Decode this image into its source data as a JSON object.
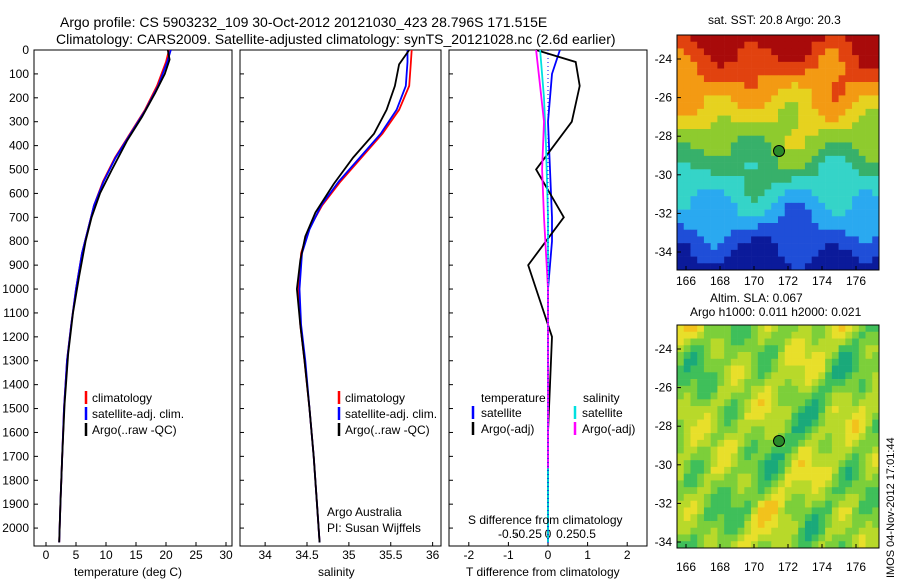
{
  "header": {
    "line1": "Argo profile: CS 5903232_109 30-Oct-2012 20121030_423 28.796S 171.515E",
    "line2": "Climatology: CARS2009. Satellite-adjusted climatology: synTS_20121028.nc (2.6d earlier)"
  },
  "colors": {
    "climatology": "#ff0000",
    "satellite": "#0000ff",
    "argo": "#000000",
    "sat_cyan": "#00e0e0",
    "argo_magenta": "#ff00ff"
  },
  "depth_ticks": [
    "0",
    "100",
    "200",
    "300",
    "400",
    "500",
    "600",
    "700",
    "800",
    "900",
    "1000",
    "1100",
    "1200",
    "1300",
    "1400",
    "1500",
    "1600",
    "1700",
    "1800",
    "1900",
    "2000"
  ],
  "panel_temp": {
    "xlabel": "temperature (deg C)",
    "xticks": [
      "0",
      "5",
      "10",
      "15",
      "20",
      "25",
      "30"
    ],
    "legend": [
      "climatology",
      "satellite-adj. clim.",
      "Argo(..raw -QC)"
    ]
  },
  "panel_sal": {
    "xlabel": "salinity",
    "xticks": [
      "34",
      "34.5",
      "35",
      "35.5",
      "36"
    ],
    "legend": [
      "climatology",
      "satellite-adj. clim.",
      "Argo(..raw -QC)"
    ],
    "credit1": "Argo Australia",
    "credit2": "PI: Susan Wijffels"
  },
  "panel_diff": {
    "xlabel_bottom": "T difference from climatology",
    "xlabel_top": "S difference from climatology",
    "xticks_T": [
      "-2",
      "-1",
      "0",
      "1",
      "2"
    ],
    "xticks_S": [
      "-0.5",
      "-0.25",
      "0",
      "0.25",
      "0.5"
    ],
    "legend_t_head": "temperature",
    "legend_s_head": "salinity",
    "legend_t": [
      "satellite",
      "Argo(-adj)"
    ],
    "legend_s": [
      "satellite",
      "Argo(-adj)"
    ]
  },
  "map_sst": {
    "title": "sat. SST: 20.8  Argo: 20.3",
    "yticks": [
      "-24",
      "-26",
      "-28",
      "-30",
      "-32",
      "-34"
    ],
    "xticks": [
      "166",
      "168",
      "170",
      "172",
      "174",
      "176"
    ]
  },
  "map_sla": {
    "title1": "Altim. SLA: 0.067",
    "title2": "Argo h1000: 0.011 h2000: 0.021",
    "yticks": [
      "-24",
      "-26",
      "-28",
      "-30",
      "-32",
      "-34"
    ],
    "xticks": [
      "166",
      "168",
      "170",
      "172",
      "174",
      "176"
    ]
  },
  "footer_vertical": "IMOS 04-Nov-2012 17:01:44",
  "chart_data": [
    {
      "type": "line",
      "xlabel": "temperature (deg C)",
      "ylabel": "",
      "xlim": [
        -2,
        31
      ],
      "ylim": [
        2075,
        0
      ],
      "series": [
        {
          "name": "climatology",
          "x": [
            20.5,
            20.0,
            18.5,
            16.5,
            14.0,
            11.5,
            9.5,
            8.0,
            7.0,
            6.0,
            5.0,
            4.2,
            3.5,
            3.0,
            2.7,
            2.4,
            2.2
          ],
          "y": [
            0,
            50,
            150,
            250,
            350,
            450,
            550,
            650,
            750,
            850,
            1000,
            1150,
            1300,
            1500,
            1700,
            1900,
            2060
          ]
        },
        {
          "name": "satellite-adj. clim.",
          "x": [
            20.8,
            20.2,
            18.7,
            16.6,
            14.1,
            11.6,
            9.6,
            8.0,
            7.0,
            6.0,
            5.0,
            4.2,
            3.5,
            3.0,
            2.7,
            2.4,
            2.2
          ],
          "y": [
            0,
            50,
            150,
            250,
            350,
            450,
            550,
            650,
            750,
            850,
            1000,
            1150,
            1300,
            1500,
            1700,
            1900,
            2060
          ]
        },
        {
          "name": "Argo(..raw -QC)",
          "x": [
            20.3,
            20.6,
            19.8,
            18.2,
            16.0,
            13.5,
            11.0,
            9.0,
            7.6,
            6.6,
            5.5,
            4.5,
            3.7,
            3.1,
            2.7,
            2.4,
            2.2
          ],
          "y": [
            0,
            40,
            100,
            180,
            280,
            380,
            500,
            600,
            700,
            800,
            950,
            1100,
            1270,
            1480,
            1700,
            1900,
            2060
          ]
        }
      ]
    },
    {
      "type": "line",
      "xlabel": "salinity",
      "ylabel": "",
      "xlim": [
        33.7,
        36.1
      ],
      "ylim": [
        2075,
        0
      ],
      "series": [
        {
          "name": "climatology",
          "x": [
            35.75,
            35.74,
            35.72,
            35.6,
            35.4,
            35.15,
            34.9,
            34.68,
            34.52,
            34.43,
            34.4,
            34.42,
            34.47,
            34.53,
            34.58,
            34.62,
            34.65
          ],
          "y": [
            0,
            50,
            150,
            250,
            350,
            450,
            550,
            650,
            750,
            850,
            1000,
            1150,
            1300,
            1500,
            1700,
            1900,
            2060
          ]
        },
        {
          "name": "satellite-adj. clim.",
          "x": [
            35.7,
            35.7,
            35.68,
            35.57,
            35.38,
            35.13,
            34.88,
            34.67,
            34.53,
            34.44,
            34.41,
            34.43,
            34.48,
            34.53,
            34.58,
            34.62,
            34.65
          ],
          "y": [
            0,
            50,
            150,
            250,
            350,
            450,
            550,
            650,
            750,
            850,
            1000,
            1150,
            1300,
            1500,
            1700,
            1900,
            2060
          ]
        },
        {
          "name": "Argo(..raw -QC)",
          "x": [
            35.72,
            35.6,
            35.55,
            35.45,
            35.3,
            35.05,
            34.82,
            34.6,
            34.48,
            34.42,
            34.38,
            34.42,
            34.47,
            34.53,
            34.58,
            34.62,
            34.65
          ],
          "y": [
            0,
            60,
            150,
            250,
            350,
            450,
            560,
            680,
            780,
            880,
            1000,
            1150,
            1300,
            1500,
            1700,
            1900,
            2060
          ]
        }
      ]
    },
    {
      "type": "line",
      "xlabel": "T difference from climatology",
      "ylabel": "",
      "xlim": [
        -2.5,
        2.5
      ],
      "ylim": [
        2075,
        0
      ],
      "series": [
        {
          "name": "satellite (temperature)",
          "x": [
            0.3,
            0.1,
            0.0,
            0.05,
            0.1,
            0.1,
            0.05,
            0.0,
            0.0,
            0.0,
            0.0,
            0.0,
            0.0
          ],
          "y": [
            0,
            100,
            300,
            500,
            700,
            800,
            900,
            1000,
            1200,
            1400,
            1600,
            1800,
            2060
          ]
        },
        {
          "name": "Argo(-adj) (temperature)",
          "x": [
            -0.3,
            0.7,
            0.8,
            0.6,
            -0.3,
            0.4,
            -0.5,
            -0.3,
            0.1,
            0.05,
            0.0,
            0.0,
            0.0
          ],
          "y": [
            0,
            50,
            150,
            300,
            500,
            700,
            900,
            1000,
            1200,
            1400,
            1600,
            1800,
            2060
          ]
        },
        {
          "name": "satellite (salinity)",
          "x": [
            -0.2,
            -0.1,
            -0.05,
            0.0,
            0.0,
            0.0,
            0.0,
            0.0
          ],
          "y": [
            0,
            200,
            400,
            700,
            1000,
            1300,
            1600,
            2060
          ]
        },
        {
          "name": "Argo(-adj) (salinity)",
          "x": [
            -0.3,
            -0.2,
            -0.1,
            -0.15,
            -0.1,
            0.0,
            0.0,
            0.0
          ],
          "y": [
            0,
            150,
            300,
            500,
            700,
            1000,
            1400,
            1750
          ]
        }
      ]
    }
  ]
}
